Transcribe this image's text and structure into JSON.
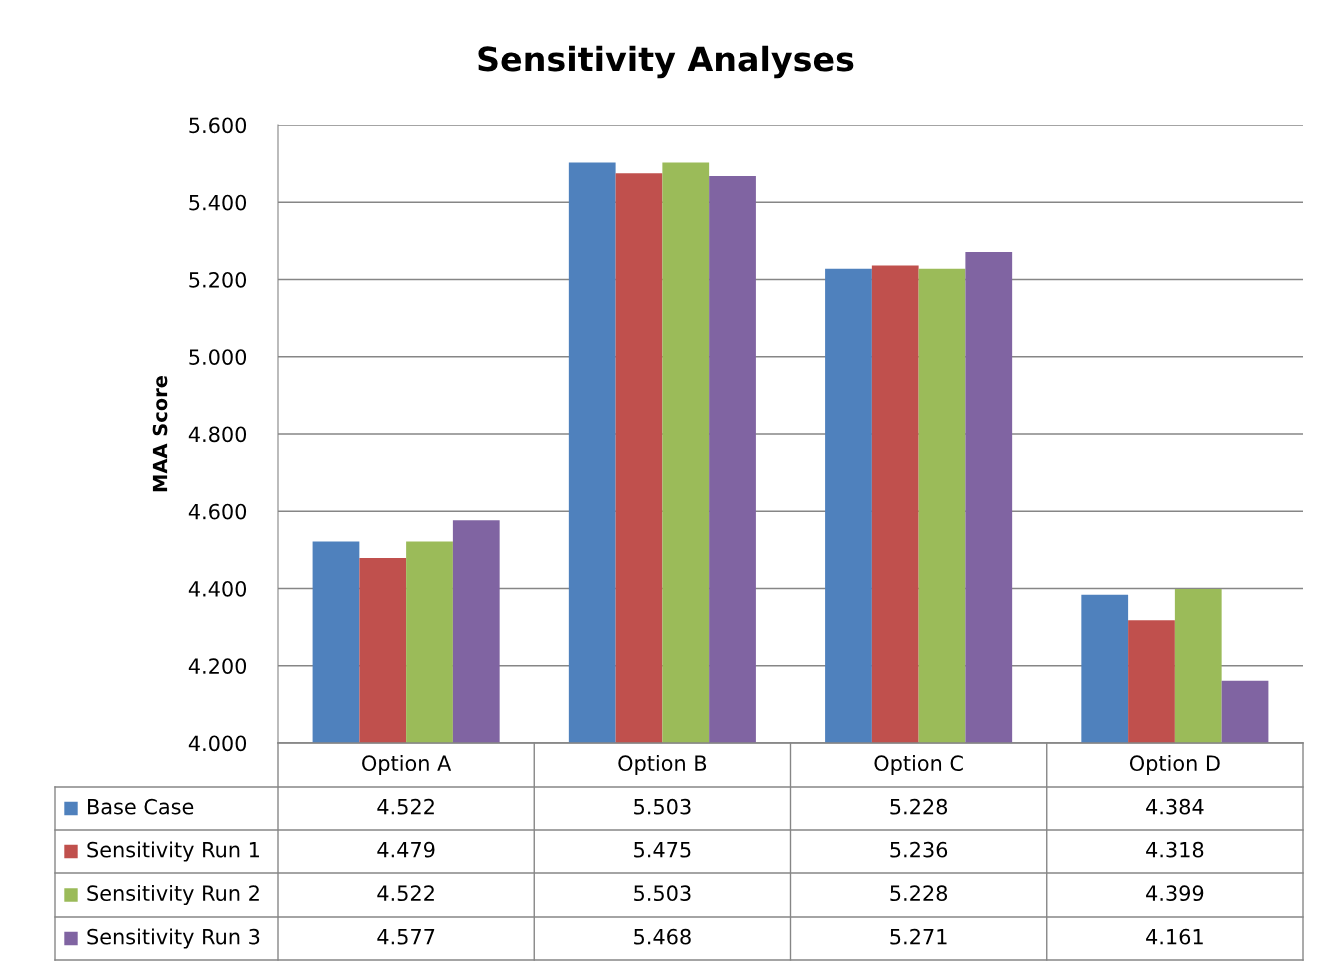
{
  "chart_data": {
    "type": "bar",
    "title": "Sensitivity Analyses",
    "ylabel": "MAA Score",
    "categories": [
      "Option A",
      "Option B",
      "Option C",
      "Option D"
    ],
    "series": [
      {
        "name": "Base Case",
        "color": "#4f81bd",
        "values": [
          4.522,
          5.503,
          5.228,
          4.384
        ]
      },
      {
        "name": "Sensitivity Run 1",
        "color": "#c0504d",
        "values": [
          4.479,
          5.475,
          5.236,
          4.318
        ]
      },
      {
        "name": "Sensitivity Run 2",
        "color": "#9bbb59",
        "values": [
          4.522,
          5.503,
          5.228,
          4.399
        ]
      },
      {
        "name": "Sensitivity Run 3",
        "color": "#8064a2",
        "values": [
          4.577,
          5.468,
          5.271,
          4.161
        ]
      }
    ],
    "ylim": [
      4.0,
      5.6
    ],
    "yticks": [
      {
        "value": 4.0,
        "label": "4.000"
      },
      {
        "value": 4.2,
        "label": "4.200"
      },
      {
        "value": 4.4,
        "label": "4.400"
      },
      {
        "value": 4.6,
        "label": "4.600"
      },
      {
        "value": 4.8,
        "label": "4.800"
      },
      {
        "value": 5.0,
        "label": "5.000"
      },
      {
        "value": 5.2,
        "label": "5.200"
      },
      {
        "value": 5.4,
        "label": "5.400"
      },
      {
        "value": 5.6,
        "label": "5.600"
      }
    ],
    "grid": "y",
    "data_labels": true,
    "legend": "bottom left"
  }
}
